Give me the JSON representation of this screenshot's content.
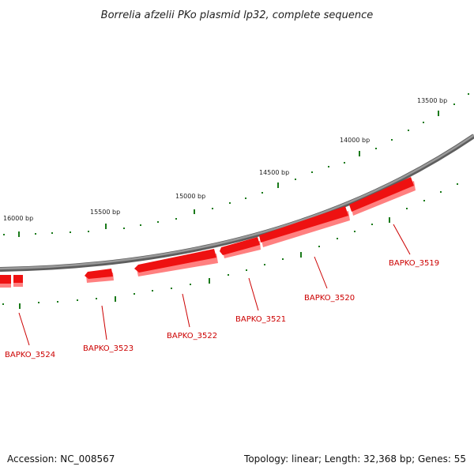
{
  "title": "Borrelia afzelii PKo plasmid lp32, complete sequence",
  "footer": {
    "accession": "Accession: NC_008567",
    "summary": "Topology: linear; Length: 32,368 bp; Genes: 55"
  },
  "colors": {
    "backbone": "#808080",
    "tick": "#1a7a1a",
    "gene": "#ee1111",
    "gene_shadow": "#ff8080",
    "gene_label": "#cc0000"
  },
  "scale_labels": [
    "13500 bp",
    "14000 bp",
    "14500 bp",
    "15000 bp",
    "15500 bp",
    "16000 bp"
  ],
  "genes": [
    "BAPKO_3519",
    "BAPKO_3520",
    "BAPKO_3521",
    "BAPKO_3522",
    "BAPKO_3523",
    "BAPKO_3524"
  ]
}
